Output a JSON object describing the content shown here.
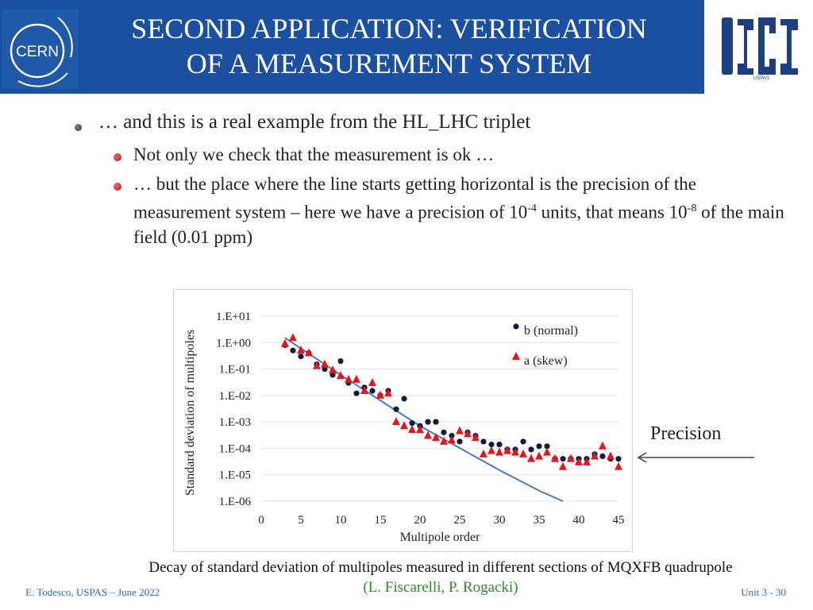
{
  "header": {
    "title_line1": "SECOND APPLICATION: VERIFICATION",
    "title_line2": "OF A MEASUREMENT SYSTEM",
    "left_logo_text": "CERN",
    "right_logo_text": "USPAS"
  },
  "content": {
    "bullet1": "… and this is a real example from the HL_LHC triplet",
    "sub1": "Not only we check that the measurement is ok …",
    "sub2_a": "… but the place where the line starts getting horizontal is the precision of the measurement system – here we have a precision of 10",
    "sub2_exp1": "-4",
    "sub2_b": " units, that means 10",
    "sub2_exp2": "-8",
    "sub2_c": " of the main field (0.01 ppm)"
  },
  "annotation": {
    "precision_label": "Precision"
  },
  "caption": {
    "text": "Decay of standard deviation of multipoles measured in different sections of MQXFB quadrupole",
    "credit": "(L. Fiscarelli, P. Rogacki)"
  },
  "footer": {
    "left": "E. Todesco, USPAS – June 2022",
    "right": "Unit 3 - 30"
  },
  "colors": {
    "header_bg": "#1b4fa0",
    "normal_series": "#0d1b3e",
    "skew_series": "#e8141c",
    "fit_line": "#4a78c0"
  },
  "chart_data": {
    "type": "scatter",
    "xlabel": "Multipole order",
    "ylabel": "Standard deviation of multipoles",
    "xlim": [
      0,
      45
    ],
    "x_ticks": [
      0,
      5,
      10,
      15,
      20,
      25,
      30,
      35,
      40,
      45
    ],
    "y_log": true,
    "ylim": [
      1e-06,
      10
    ],
    "y_tick_values": [
      10,
      1,
      0.1,
      0.01,
      0.001,
      0.0001,
      1e-05,
      1e-06
    ],
    "y_tick_labels": [
      "1.E+01",
      "1.E+00",
      "1.E-01",
      "1.E-02",
      "1.E-03",
      "1.E-04",
      "1.E-05",
      "1.E-06"
    ],
    "legend_position": "top-right",
    "grid": "horizontal",
    "series": [
      {
        "name": "b (normal)",
        "marker": "circle",
        "x": [
          3,
          4,
          5,
          6,
          7,
          8,
          9,
          10,
          11,
          12,
          13,
          14,
          15,
          16,
          17,
          18,
          19,
          20,
          21,
          22,
          23,
          24,
          25,
          26,
          27,
          28,
          29,
          30,
          31,
          32,
          33,
          34,
          35,
          36,
          37,
          38,
          39,
          40,
          41,
          42,
          43,
          44,
          45
        ],
        "y": [
          0.8,
          0.5,
          0.3,
          0.4,
          0.15,
          0.1,
          0.06,
          0.2,
          0.03,
          0.012,
          0.02,
          0.015,
          0.01,
          0.015,
          0.003,
          0.0075,
          0.0009,
          0.0007,
          0.001,
          0.001,
          0.0004,
          0.0003,
          0.00018,
          0.0004,
          0.0003,
          0.00018,
          0.00014,
          0.00014,
          9e-05,
          9e-05,
          0.00018,
          9e-05,
          0.00012,
          0.00012,
          4e-05,
          4e-05,
          4e-05,
          4e-05,
          4e-05,
          6e-05,
          5e-05,
          4e-05,
          4e-05
        ]
      },
      {
        "name": "a (skew)",
        "marker": "triangle",
        "x": [
          3,
          4,
          5,
          6,
          7,
          8,
          9,
          10,
          11,
          12,
          13,
          14,
          15,
          16,
          17,
          18,
          19,
          20,
          21,
          22,
          23,
          24,
          25,
          26,
          27,
          28,
          29,
          30,
          31,
          32,
          33,
          34,
          35,
          36,
          37,
          38,
          39,
          40,
          41,
          42,
          43,
          44,
          45
        ],
        "y": [
          0.9,
          1.5,
          0.5,
          0.4,
          0.13,
          0.15,
          0.09,
          0.055,
          0.04,
          0.04,
          0.015,
          0.03,
          0.01,
          0.012,
          0.001,
          0.0007,
          0.0005,
          0.0005,
          0.0003,
          0.00025,
          0.00018,
          0.0002,
          0.00045,
          0.00035,
          0.00025,
          6e-05,
          8e-05,
          7e-05,
          8e-05,
          7e-05,
          6e-05,
          4e-05,
          5e-05,
          7e-05,
          4e-05,
          2e-05,
          4e-05,
          3e-05,
          3e-05,
          5e-05,
          0.00012,
          5e-05,
          2e-05
        ]
      }
    ],
    "fit_line": {
      "x": [
        3,
        10,
        20,
        30,
        35,
        38
      ],
      "y": [
        1.5,
        0.06,
        0.0007,
        1.5e-05,
        2.5e-06,
        1e-06
      ]
    }
  }
}
